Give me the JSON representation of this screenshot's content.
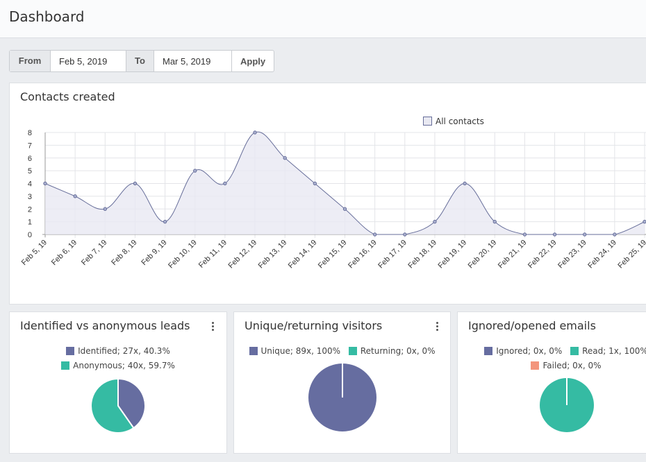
{
  "header": {
    "title": "Dashboard"
  },
  "date_filter": {
    "from_label": "From",
    "from_value": "Feb 5, 2019",
    "to_label": "To",
    "to_value": "Mar 5, 2019",
    "apply_label": "Apply"
  },
  "contacts_card": {
    "title": "Contacts created",
    "legend_label": "All contacts"
  },
  "chart_data": {
    "type": "area",
    "title": "Contacts created",
    "series": [
      {
        "name": "All contacts",
        "color": "#666d99",
        "fill": "#e9e9f2",
        "values": [
          4,
          3,
          2,
          4,
          1,
          5,
          4,
          8,
          6,
          4,
          2,
          0,
          0,
          1,
          4,
          1,
          0,
          0,
          0,
          0,
          1
        ]
      }
    ],
    "categories": [
      "Feb 5, 19",
      "Feb 6, 19",
      "Feb 7, 19",
      "Feb 8, 19",
      "Feb 9, 19",
      "Feb 10, 19",
      "Feb 11, 19",
      "Feb 12, 19",
      "Feb 13, 19",
      "Feb 14, 19",
      "Feb 15, 19",
      "Feb 16, 19",
      "Feb 17, 19",
      "Feb 18, 19",
      "Feb 19, 19",
      "Feb 20, 19",
      "Feb 21, 19",
      "Feb 22, 19",
      "Feb 23, 19",
      "Feb 24, 19",
      "Feb 25, 19"
    ],
    "yticks": [
      "0",
      "1",
      "2",
      "3",
      "4",
      "5",
      "6",
      "7",
      "8"
    ],
    "ylim": [
      0,
      8
    ],
    "grid": true,
    "legend_position": "top-right"
  },
  "leads_card": {
    "title": "Identified vs anonymous leads",
    "legend": [
      {
        "label": "Identified; 27x, 40.3%",
        "color": "#666da0"
      },
      {
        "label": "Anonymous; 40x, 59.7%",
        "color": "#35bba3"
      }
    ],
    "pie": [
      {
        "value": 40.3,
        "color": "#666da0"
      },
      {
        "value": 59.7,
        "color": "#35bba3"
      }
    ]
  },
  "visitors_card": {
    "title": "Unique/returning visitors",
    "legend": [
      {
        "label": "Unique; 89x, 100%",
        "color": "#666da0"
      },
      {
        "label": "Returning; 0x, 0%",
        "color": "#35bba3"
      }
    ],
    "pie": [
      {
        "value": 100,
        "color": "#666da0"
      }
    ]
  },
  "emails_card": {
    "title": "Ignored/opened emails",
    "legend": [
      {
        "label": "Ignored; 0x, 0%",
        "color": "#666da0"
      },
      {
        "label": "Read; 1x, 100%",
        "color": "#35bba3"
      },
      {
        "label": "Failed; 0x, 0%",
        "color": "#f3957c"
      }
    ],
    "pie": [
      {
        "value": 100,
        "color": "#35bba3"
      }
    ]
  }
}
